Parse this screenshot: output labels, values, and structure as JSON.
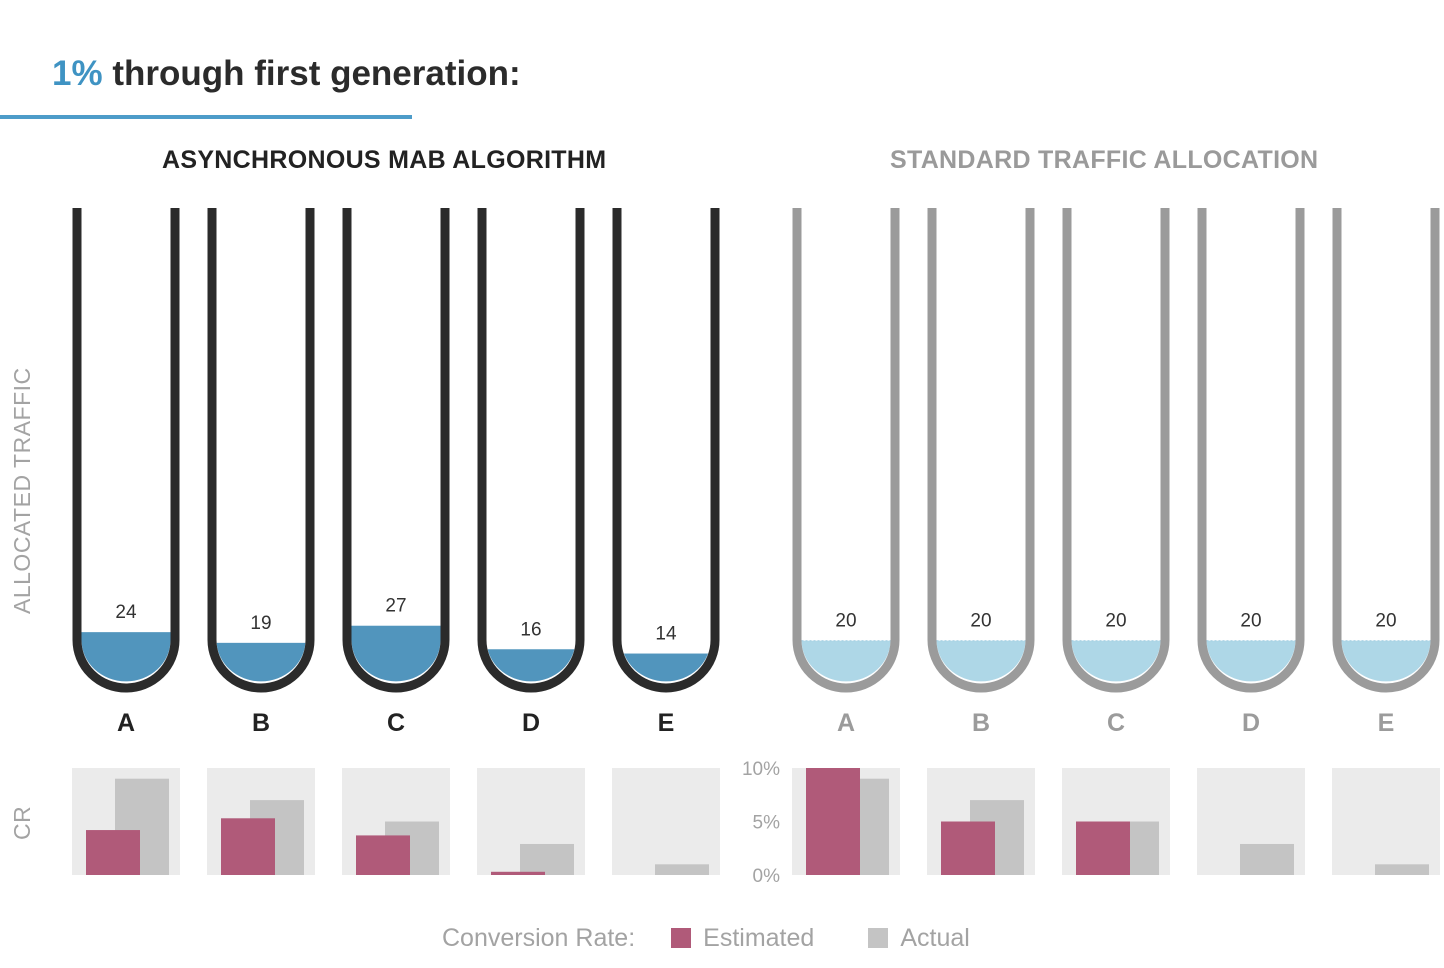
{
  "header": {
    "percent": "1%",
    "title_rest": "through first generation:"
  },
  "groups": {
    "mab_title": "ASYNCHRONOUS MAB ALGORITHM",
    "standard_title": "STANDARD TRAFFIC ALLOCATION"
  },
  "axis_labels": {
    "traffic": "ALLOCATED TRAFFIC",
    "cr": "CR"
  },
  "legend": {
    "label": "Conversion Rate:",
    "estimated": "Estimated",
    "actual": "Actual"
  },
  "colors": {
    "mab_tube": "#2b2b2b",
    "std_tube": "#9b9b9b",
    "mab_fill": "#5195bd",
    "std_fill": "#aed7e7",
    "estimated": "#b05a79",
    "actual": "#c4c4c4",
    "panel": "#ebebeb",
    "accent": "#3f93c3"
  },
  "chart_data": {
    "type": "bar",
    "variants": [
      "A",
      "B",
      "C",
      "D",
      "E"
    ],
    "cr_axis": {
      "ticks": [
        "10%",
        "5%",
        "0%"
      ],
      "ylim": [
        0,
        10
      ],
      "unit": "%"
    },
    "groups": [
      {
        "name": "ASYNCHRONOUS MAB ALGORITHM",
        "traffic": [
          24,
          19,
          27,
          16,
          14
        ],
        "estimated_cr": [
          4.2,
          5.3,
          3.7,
          0.3,
          0
        ],
        "actual_cr": [
          9,
          7,
          5,
          2.9,
          1
        ]
      },
      {
        "name": "STANDARD TRAFFIC ALLOCATION",
        "traffic": [
          20,
          20,
          20,
          20,
          20
        ],
        "estimated_cr": [
          10,
          5,
          5,
          0,
          0
        ],
        "actual_cr": [
          9,
          7,
          5,
          2.9,
          1
        ]
      }
    ]
  }
}
